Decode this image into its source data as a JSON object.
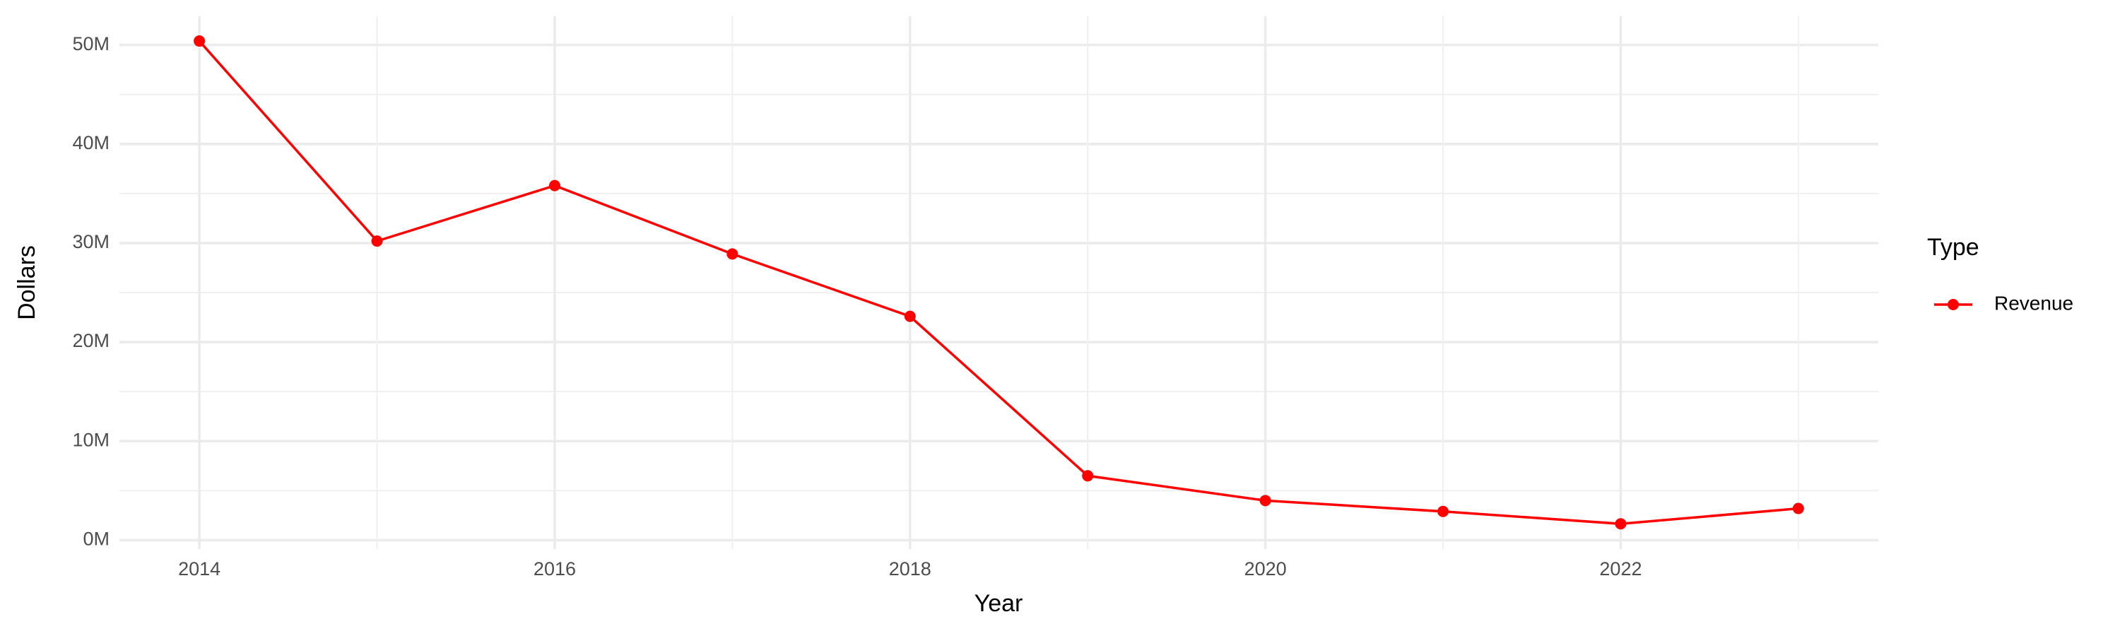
{
  "chart_data": {
    "type": "line",
    "x": [
      2014,
      2015,
      2016,
      2017,
      2018,
      2019,
      2020,
      2021,
      2022,
      2023
    ],
    "series": [
      {
        "name": "Revenue",
        "color": "#ff0000",
        "values": [
          50400000,
          30200000,
          35800000,
          28900000,
          22600000,
          6500000,
          4000000,
          2900000,
          1650000,
          3200000
        ]
      }
    ],
    "xlim": [
      2013.55,
      2023.45
    ],
    "xticks": [
      2014,
      2016,
      2018,
      2020,
      2022
    ],
    "ylim": [
      -900000,
      52900000
    ],
    "yticks": [
      {
        "value": 0,
        "label": "0M"
      },
      {
        "value": 10000000,
        "label": "10M"
      },
      {
        "value": 20000000,
        "label": "20M"
      },
      {
        "value": 30000000,
        "label": "30M"
      },
      {
        "value": 40000000,
        "label": "40M"
      },
      {
        "value": 50000000,
        "label": "50M"
      }
    ],
    "x_label": "Year",
    "y_label": "Dollars",
    "legend_title": "Type",
    "legend_position": "right",
    "grid": true
  }
}
